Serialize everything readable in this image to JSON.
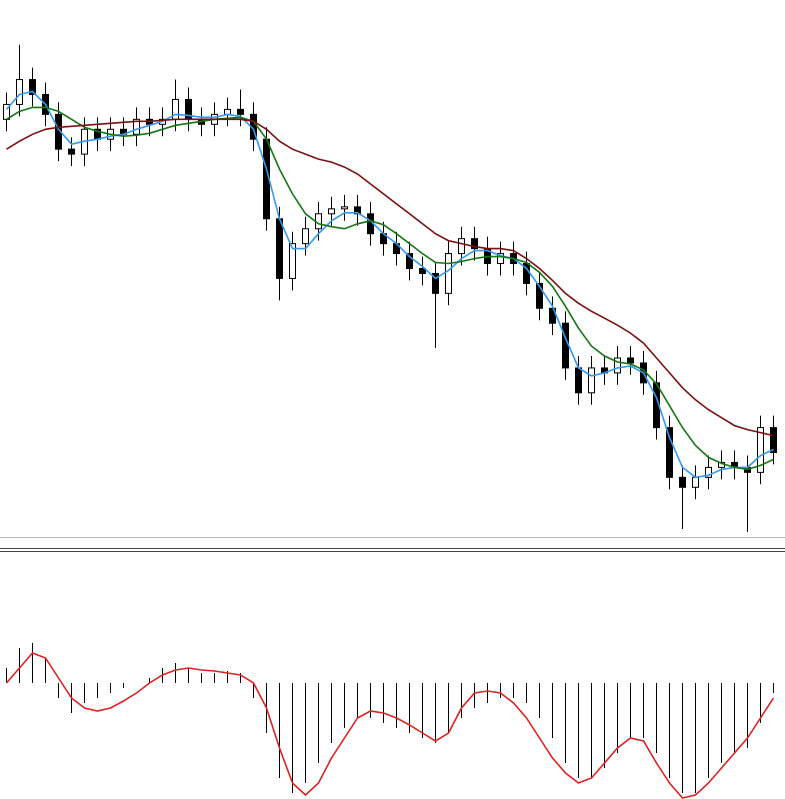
{
  "chart_data": [
    {
      "type": "candlestick",
      "ylim": [
        0,
        540
      ],
      "colors": {
        "up": "#ffffff",
        "down": "#000000",
        "outline": "#000000"
      },
      "open": [
        420,
        435,
        460,
        445,
        425,
        390,
        385,
        410,
        400,
        410,
        405,
        420,
        415,
        420,
        440,
        420,
        415,
        425,
        430,
        425,
        400,
        320,
        260,
        295,
        310,
        325,
        330,
        332,
        325,
        305,
        295,
        285,
        270,
        265,
        245,
        285,
        300,
        290,
        275,
        285,
        275,
        255,
        230,
        215,
        170,
        145,
        170,
        165,
        180,
        175,
        155,
        110,
        60,
        50,
        60,
        70,
        75,
        70,
        65,
        110
      ],
      "high": [
        447,
        495,
        472,
        457,
        437,
        402,
        422,
        422,
        422,
        422,
        432,
        432,
        432,
        460,
        452,
        432,
        437,
        442,
        450,
        437,
        412,
        332,
        307,
        322,
        337,
        342,
        344,
        344,
        337,
        317,
        307,
        297,
        282,
        277,
        297,
        312,
        312,
        302,
        297,
        297,
        287,
        267,
        242,
        227,
        182,
        182,
        182,
        192,
        192,
        187,
        167,
        122,
        72,
        72,
        82,
        87,
        87,
        82,
        122,
        122
      ],
      "low": [
        408,
        423,
        433,
        413,
        378,
        373,
        373,
        388,
        388,
        393,
        393,
        403,
        403,
        408,
        408,
        403,
        403,
        413,
        413,
        388,
        308,
        238,
        248,
        283,
        298,
        313,
        318,
        313,
        293,
        283,
        273,
        258,
        253,
        190,
        233,
        273,
        278,
        263,
        263,
        263,
        243,
        218,
        203,
        158,
        133,
        133,
        153,
        153,
        163,
        143,
        98,
        48,
        8,
        38,
        48,
        58,
        58,
        5,
        53,
        73
      ],
      "close": [
        435,
        460,
        445,
        425,
        390,
        385,
        410,
        400,
        410,
        405,
        420,
        415,
        420,
        440,
        420,
        415,
        425,
        430,
        425,
        400,
        320,
        260,
        295,
        310,
        325,
        330,
        332,
        325,
        305,
        295,
        285,
        270,
        265,
        245,
        285,
        300,
        290,
        275,
        285,
        275,
        255,
        230,
        215,
        170,
        145,
        170,
        165,
        180,
        175,
        155,
        110,
        60,
        50,
        60,
        70,
        75,
        70,
        65,
        110,
        85
      ],
      "series": [
        {
          "color": "#3399ee",
          "values": [
            430,
            445,
            448,
            435,
            410,
            395,
            398,
            400,
            403,
            405,
            410,
            414,
            418,
            425,
            424,
            422,
            422,
            425,
            423,
            410,
            370,
            320,
            290,
            290,
            305,
            318,
            326,
            326,
            318,
            305,
            295,
            282,
            272,
            260,
            268,
            280,
            288,
            288,
            283,
            280,
            270,
            252,
            232,
            200,
            170,
            162,
            165,
            170,
            172,
            165,
            140,
            100,
            70,
            60,
            62,
            68,
            70,
            70,
            82,
            88
          ]
        },
        {
          "color": "#137713",
          "values": [
            420,
            428,
            432,
            432,
            428,
            420,
            412,
            408,
            405,
            403,
            404,
            406,
            410,
            414,
            416,
            418,
            420,
            421,
            422,
            418,
            400,
            370,
            345,
            325,
            315,
            312,
            310,
            315,
            318,
            314,
            305,
            295,
            285,
            276,
            275,
            277,
            280,
            282,
            282,
            280,
            276,
            266,
            252,
            232,
            210,
            192,
            182,
            176,
            174,
            168,
            154,
            132,
            110,
            92,
            80,
            74,
            70,
            68,
            72,
            78
          ]
        },
        {
          "color": "#7a1010",
          "values": [
            390,
            398,
            405,
            410,
            412,
            413,
            414,
            415,
            416,
            417,
            418,
            418,
            419,
            420,
            420,
            420,
            420,
            420,
            420,
            418,
            410,
            398,
            390,
            385,
            380,
            377,
            372,
            365,
            355,
            345,
            335,
            325,
            315,
            305,
            298,
            295,
            292,
            290,
            290,
            288,
            280,
            270,
            258,
            245,
            235,
            227,
            220,
            213,
            205,
            195,
            180,
            165,
            150,
            138,
            128,
            120,
            112,
            108,
            105,
            102
          ]
        }
      ]
    },
    {
      "type": "macd",
      "ylim": [
        -116,
        130
      ],
      "histogram": {
        "color": "#000000",
        "values": [
          15,
          35,
          40,
          25,
          -15,
          -30,
          -20,
          -15,
          -10,
          -5,
          0,
          5,
          15,
          20,
          15,
          10,
          10,
          12,
          10,
          -15,
          -50,
          -95,
          -110,
          -100,
          -80,
          -60,
          -45,
          -35,
          -35,
          -40,
          -45,
          -50,
          -55,
          -60,
          -50,
          -35,
          -25,
          -20,
          -15,
          -15,
          -20,
          -35,
          -55,
          -80,
          -95,
          -95,
          -85,
          -70,
          -55,
          -55,
          -70,
          -95,
          -110,
          -110,
          -95,
          -80,
          -70,
          -65,
          -40,
          -10
        ]
      },
      "signal": {
        "color": "#dd2222",
        "values": [
          0,
          15,
          30,
          25,
          5,
          -15,
          -25,
          -28,
          -25,
          -18,
          -10,
          0,
          8,
          13,
          15,
          13,
          12,
          10,
          8,
          0,
          -25,
          -65,
          -100,
          -112,
          -100,
          -75,
          -55,
          -35,
          -28,
          -30,
          -35,
          -42,
          -50,
          -58,
          -50,
          -25,
          -10,
          -8,
          -10,
          -20,
          -35,
          -55,
          -75,
          -90,
          -100,
          -95,
          -80,
          -65,
          -55,
          -58,
          -80,
          -100,
          -115,
          -112,
          -100,
          -85,
          -70,
          -55,
          -35,
          -15
        ]
      }
    }
  ]
}
